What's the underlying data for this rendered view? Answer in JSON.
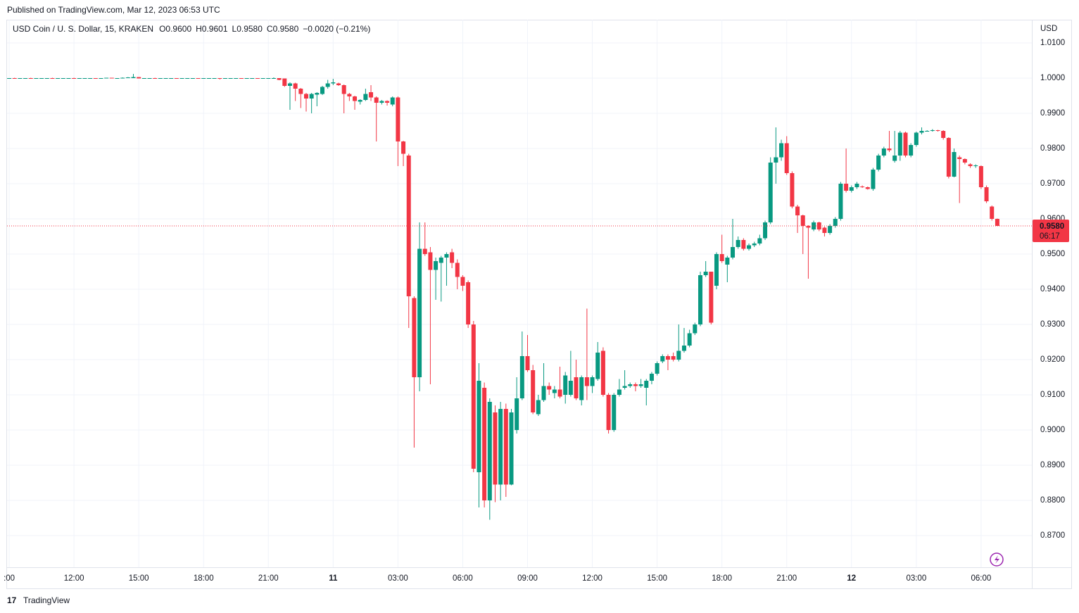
{
  "header": {
    "published": "Published on TradingView.com, Mar 12, 2023 06:53 UTC",
    "footer": "TradingView"
  },
  "chart_data": {
    "type": "candlestick",
    "title": "USD Coin / U. S. Dollar, 15, KRAKEN",
    "ohlc": [
      {
        "name": "O",
        "value": 0.96,
        "label": "0.9600"
      },
      {
        "name": "H",
        "value": 0.9601,
        "label": "0.9601"
      },
      {
        "name": "L",
        "value": 0.958,
        "label": "0.9580"
      },
      {
        "name": "C",
        "value": 0.958,
        "label": "0.9580"
      }
    ],
    "change": "−0.0020 (−0.21%)",
    "currency": "USD",
    "last_price": {
      "value": 0.958,
      "label": "0.9580"
    },
    "countdown": "06:17",
    "up_color": "#089981",
    "down_color": "#f23645",
    "grid": true,
    "ylim": [
      0.861,
      1.0166
    ],
    "yticks": [
      {
        "value": 1.01,
        "label": "1.0100"
      },
      {
        "value": 1.0,
        "label": "1.0000"
      },
      {
        "value": 0.99,
        "label": "0.9900"
      },
      {
        "value": 0.98,
        "label": "0.9800"
      },
      {
        "value": 0.97,
        "label": "0.9700"
      },
      {
        "value": 0.96,
        "label": "0.9600"
      },
      {
        "value": 0.95,
        "label": "0.9500"
      },
      {
        "value": 0.94,
        "label": "0.9400"
      },
      {
        "value": 0.93,
        "label": "0.9300"
      },
      {
        "value": 0.92,
        "label": "0.9200"
      },
      {
        "value": 0.91,
        "label": "0.9100"
      },
      {
        "value": 0.9,
        "label": "0.9000"
      },
      {
        "value": 0.89,
        "label": "0.8900"
      },
      {
        "value": 0.88,
        "label": "0.8800"
      },
      {
        "value": 0.87,
        "label": "0.8700"
      }
    ],
    "xlim": [
      -0.4,
      189.4
    ],
    "xticks": [
      {
        "value": 0,
        "label": ":00"
      },
      {
        "value": 12,
        "label": "12:00"
      },
      {
        "value": 24,
        "label": "15:00"
      },
      {
        "value": 36,
        "label": "18:00"
      },
      {
        "value": 48,
        "label": "21:00"
      },
      {
        "value": 60,
        "label": "11"
      },
      {
        "value": 72,
        "label": "03:00"
      },
      {
        "value": 84,
        "label": "06:00"
      },
      {
        "value": 96,
        "label": "09:00"
      },
      {
        "value": 108,
        "label": "12:00"
      },
      {
        "value": 120,
        "label": "15:00"
      },
      {
        "value": 132,
        "label": "18:00"
      },
      {
        "value": 144,
        "label": "21:00"
      },
      {
        "value": 156,
        "label": "12"
      },
      {
        "value": 168,
        "label": "03:00"
      },
      {
        "value": 180,
        "label": "06:00"
      }
    ],
    "candles": [
      [
        1,
        1,
        1,
        1
      ],
      [
        1,
        1.0001,
        0.9999,
        0.9999
      ],
      [
        0.9999,
        1,
        0.9999,
        1
      ],
      [
        1,
        1,
        1,
        1
      ],
      [
        1,
        1.0001,
        0.9999,
        0.9999
      ],
      [
        0.9999,
        1,
        0.9999,
        1
      ],
      [
        1,
        1,
        1,
        1
      ],
      [
        1,
        1,
        1,
        1
      ],
      [
        1,
        1.0001,
        0.9999,
        0.9999
      ],
      [
        0.9999,
        1,
        0.9999,
        1
      ],
      [
        1,
        1,
        1,
        1
      ],
      [
        1,
        1,
        1,
        1
      ],
      [
        1,
        1.0001,
        0.9999,
        0.9999
      ],
      [
        0.9999,
        1,
        0.9999,
        1
      ],
      [
        1,
        1,
        1,
        1
      ],
      [
        1,
        1,
        1,
        1
      ],
      [
        1,
        1,
        0.9999,
        0.9999
      ],
      [
        0.9999,
        1,
        0.9999,
        1
      ],
      [
        1,
        1.0001,
        1,
        1.0001
      ],
      [
        1.0001,
        1.0001,
        1,
        1
      ],
      [
        1,
        1,
        1,
        1
      ],
      [
        1,
        1.0002,
        1,
        1.0001
      ],
      [
        1.0001,
        1.0003,
        1,
        1.0002
      ],
      [
        1,
        1.0012,
        1,
        1.0003
      ],
      [
        1.0003,
        1.0003,
        0.9999,
        0.9999
      ],
      [
        0.9999,
        1,
        0.9999,
        1
      ],
      [
        1,
        1,
        1,
        1
      ],
      [
        1,
        1.0001,
        0.9999,
        0.9999
      ],
      [
        0.9999,
        1,
        0.9999,
        1
      ],
      [
        1,
        1,
        1,
        1
      ],
      [
        1,
        1,
        1,
        1
      ],
      [
        1,
        1,
        0.9999,
        0.9999
      ],
      [
        0.9999,
        1,
        0.9999,
        1
      ],
      [
        1,
        1,
        1,
        1
      ],
      [
        1,
        1,
        1,
        1
      ],
      [
        1,
        1,
        0.9999,
        0.9999
      ],
      [
        0.9999,
        1,
        0.9999,
        1
      ],
      [
        1,
        1,
        1,
        1
      ],
      [
        1,
        1,
        1,
        1
      ],
      [
        1,
        1,
        0.9996,
        0.9999
      ],
      [
        0.9999,
        1,
        0.9999,
        1
      ],
      [
        1,
        1,
        1,
        1
      ],
      [
        1,
        1,
        1,
        1
      ],
      [
        1,
        1,
        0.9999,
        0.9999
      ],
      [
        0.9999,
        1,
        0.9998,
        1
      ],
      [
        1,
        1,
        1,
        1
      ],
      [
        1,
        1,
        0.9999,
        0.9999
      ],
      [
        0.9999,
        1,
        0.9998,
        1
      ],
      [
        1,
        1,
        1,
        1
      ],
      [
        1,
        1.0002,
        0.9998,
        1
      ],
      [
        1,
        1,
        0.9994,
        0.9995
      ],
      [
        0.9999,
        0.9999,
        0.9975,
        0.9978
      ],
      [
        0.9978,
        0.9988,
        0.991,
        0.9985
      ],
      [
        0.9985,
        0.9987,
        0.9935,
        0.997
      ],
      [
        0.997,
        0.9972,
        0.9915,
        0.9955
      ],
      [
        0.9955,
        0.9958,
        0.9905,
        0.9942
      ],
      [
        0.9942,
        0.9958,
        0.99,
        0.9955
      ],
      [
        0.9953,
        0.996,
        0.992,
        0.9958
      ],
      [
        0.9955,
        0.9978,
        0.9952,
        0.9975
      ],
      [
        0.9975,
        0.9995,
        0.997,
        0.9985
      ],
      [
        0.9985,
        0.9998,
        0.998,
        0.9988
      ],
      [
        0.9985,
        0.9987,
        0.9978,
        0.998
      ],
      [
        0.998,
        0.9982,
        0.99,
        0.9955
      ],
      [
        0.9955,
        0.9958,
        0.9935,
        0.9948
      ],
      [
        0.9948,
        0.995,
        0.991,
        0.9935
      ],
      [
        0.9933,
        0.994,
        0.9925,
        0.9938
      ],
      [
        0.9938,
        0.997,
        0.9935,
        0.9955
      ],
      [
        0.996,
        0.998,
        0.9935,
        0.9945
      ],
      [
        0.9945,
        0.9948,
        0.982,
        0.993
      ],
      [
        0.993,
        0.9938,
        0.9925,
        0.9935
      ],
      [
        0.9935,
        0.9937,
        0.9922,
        0.993
      ],
      [
        0.9925,
        0.9948,
        0.992,
        0.9945
      ],
      [
        0.9945,
        0.9948,
        0.975,
        0.982
      ],
      [
        0.982,
        0.9822,
        0.975,
        0.9785
      ],
      [
        0.978,
        0.9785,
        0.929,
        0.938
      ],
      [
        0.9375,
        0.938,
        0.895,
        0.915
      ],
      [
        0.915,
        0.959,
        0.911,
        0.9515
      ],
      [
        0.9515,
        0.959,
        0.9495,
        0.95
      ],
      [
        0.9505,
        0.952,
        0.913,
        0.9455
      ],
      [
        0.9455,
        0.949,
        0.937,
        0.948
      ],
      [
        0.9475,
        0.9495,
        0.9365,
        0.949
      ],
      [
        0.949,
        0.9505,
        0.941,
        0.95
      ],
      [
        0.9505,
        0.9515,
        0.946,
        0.9475
      ],
      [
        0.9475,
        0.9485,
        0.94,
        0.9435
      ],
      [
        0.9435,
        0.944,
        0.9395,
        0.941
      ],
      [
        0.942,
        0.9425,
        0.929,
        0.93
      ],
      [
        0.93,
        0.931,
        0.888,
        0.889
      ],
      [
        0.888,
        0.919,
        0.878,
        0.914
      ],
      [
        0.912,
        0.9135,
        0.878,
        0.88
      ],
      [
        0.88,
        0.909,
        0.8745,
        0.908
      ],
      [
        0.905,
        0.907,
        0.8795,
        0.8845
      ],
      [
        0.8845,
        0.908,
        0.88,
        0.906
      ],
      [
        0.906,
        0.9075,
        0.881,
        0.8845
      ],
      [
        0.8845,
        0.906,
        0.8843,
        0.905
      ],
      [
        0.9,
        0.915,
        0.899,
        0.909
      ],
      [
        0.909,
        0.928,
        0.9085,
        0.921
      ],
      [
        0.921,
        0.927,
        0.9165,
        0.917
      ],
      [
        0.917,
        0.9185,
        0.9045,
        0.905
      ],
      [
        0.9045,
        0.91,
        0.904,
        0.9085
      ],
      [
        0.9085,
        0.919,
        0.908,
        0.9125
      ],
      [
        0.9125,
        0.9135,
        0.91,
        0.9115
      ],
      [
        0.9105,
        0.9125,
        0.909,
        0.9115
      ],
      [
        0.9115,
        0.918,
        0.909,
        0.9095
      ],
      [
        0.91,
        0.9165,
        0.9075,
        0.9155
      ],
      [
        0.91,
        0.9225,
        0.9095,
        0.914
      ],
      [
        0.915,
        0.92,
        0.9085,
        0.909
      ],
      [
        0.9085,
        0.9155,
        0.907,
        0.915
      ],
      [
        0.915,
        0.9345,
        0.9085,
        0.9125
      ],
      [
        0.9125,
        0.9155,
        0.9105,
        0.915
      ],
      [
        0.9145,
        0.925,
        0.914,
        0.922
      ],
      [
        0.9225,
        0.9235,
        0.9095,
        0.91
      ],
      [
        0.91,
        0.9105,
        0.899,
        0.9
      ],
      [
        0.9,
        0.9105,
        0.8995,
        0.91
      ],
      [
        0.91,
        0.9145,
        0.9095,
        0.9115
      ],
      [
        0.912,
        0.917,
        0.9115,
        0.9125
      ],
      [
        0.9125,
        0.9135,
        0.912,
        0.913
      ],
      [
        0.913,
        0.9135,
        0.911,
        0.9125
      ],
      [
        0.9125,
        0.9145,
        0.912,
        0.913
      ],
      [
        0.912,
        0.9145,
        0.907,
        0.914
      ],
      [
        0.914,
        0.9165,
        0.913,
        0.916
      ],
      [
        0.916,
        0.9195,
        0.9155,
        0.919
      ],
      [
        0.9195,
        0.9215,
        0.919,
        0.921
      ],
      [
        0.921,
        0.9215,
        0.917,
        0.92
      ],
      [
        0.921,
        0.922,
        0.9195,
        0.92
      ],
      [
        0.92,
        0.93,
        0.9195,
        0.9225
      ],
      [
        0.9225,
        0.929,
        0.922,
        0.924
      ],
      [
        0.924,
        0.9285,
        0.9235,
        0.9275
      ],
      [
        0.9275,
        0.9305,
        0.927,
        0.93
      ],
      [
        0.93,
        0.945,
        0.9295,
        0.944
      ],
      [
        0.944,
        0.948,
        0.9435,
        0.945
      ],
      [
        0.945,
        0.945,
        0.93,
        0.9305
      ],
      [
        0.941,
        0.9505,
        0.94,
        0.95
      ],
      [
        0.95,
        0.9555,
        0.9475,
        0.948
      ],
      [
        0.947,
        0.9495,
        0.942,
        0.949
      ],
      [
        0.949,
        0.96,
        0.9485,
        0.952
      ],
      [
        0.952,
        0.955,
        0.9515,
        0.954
      ],
      [
        0.954,
        0.9545,
        0.951,
        0.9515
      ],
      [
        0.9515,
        0.953,
        0.951,
        0.9525
      ],
      [
        0.9525,
        0.9535,
        0.952,
        0.953
      ],
      [
        0.953,
        0.9555,
        0.9525,
        0.9545
      ],
      [
        0.9545,
        0.9595,
        0.954,
        0.959
      ],
      [
        0.959,
        0.9775,
        0.9585,
        0.976
      ],
      [
        0.976,
        0.986,
        0.97,
        0.9775
      ],
      [
        0.9775,
        0.9825,
        0.9765,
        0.9815
      ],
      [
        0.9815,
        0.9835,
        0.9725,
        0.973
      ],
      [
        0.973,
        0.9735,
        0.963,
        0.9635
      ],
      [
        0.9635,
        0.964,
        0.956,
        0.961
      ],
      [
        0.961,
        0.9612,
        0.95,
        0.958
      ],
      [
        0.958,
        0.9582,
        0.943,
        0.9575
      ],
      [
        0.957,
        0.9595,
        0.9565,
        0.959
      ],
      [
        0.959,
        0.9592,
        0.9565,
        0.957
      ],
      [
        0.9575,
        0.9578,
        0.955,
        0.956
      ],
      [
        0.956,
        0.9585,
        0.9555,
        0.958
      ],
      [
        0.958,
        0.9605,
        0.9575,
        0.96
      ],
      [
        0.96,
        0.9705,
        0.9595,
        0.97
      ],
      [
        0.97,
        0.98,
        0.9675,
        0.968
      ],
      [
        0.968,
        0.9695,
        0.9675,
        0.969
      ],
      [
        0.969,
        0.9705,
        0.9685,
        0.97
      ],
      [
        0.9692,
        0.9695,
        0.9688,
        0.969
      ],
      [
        0.969,
        0.9692,
        0.9683,
        0.9685
      ],
      [
        0.9685,
        0.9745,
        0.968,
        0.974
      ],
      [
        0.974,
        0.9785,
        0.9735,
        0.978
      ],
      [
        0.978,
        0.9805,
        0.9775,
        0.98
      ],
      [
        0.98,
        0.985,
        0.979,
        0.9795
      ],
      [
        0.9765,
        0.985,
        0.976,
        0.978
      ],
      [
        0.978,
        0.985,
        0.9765,
        0.9845
      ],
      [
        0.9845,
        0.9848,
        0.9775,
        0.978
      ],
      [
        0.978,
        0.9815,
        0.9775,
        0.981
      ],
      [
        0.981,
        0.9848,
        0.9805,
        0.9845
      ],
      [
        0.9845,
        0.986,
        0.984,
        0.985
      ],
      [
        0.985,
        0.9852,
        0.9848,
        0.985
      ],
      [
        0.985,
        0.9855,
        0.9848,
        0.9852
      ],
      [
        0.9852,
        0.9853,
        0.9848,
        0.985
      ],
      [
        0.985,
        0.9852,
        0.9825,
        0.983
      ],
      [
        0.983,
        0.9832,
        0.9715,
        0.972
      ],
      [
        0.972,
        0.98,
        0.9718,
        0.979
      ],
      [
        0.9775,
        0.978,
        0.9645,
        0.977
      ],
      [
        0.977,
        0.9772,
        0.9755,
        0.976
      ],
      [
        0.9755,
        0.9758,
        0.9745,
        0.975
      ],
      [
        0.975,
        0.9755,
        0.9745,
        0.9752
      ],
      [
        0.975,
        0.9752,
        0.9685,
        0.969
      ],
      [
        0.969,
        0.9695,
        0.9645,
        0.965
      ],
      [
        0.9635,
        0.9638,
        0.9595,
        0.96
      ],
      [
        0.96,
        0.9601,
        0.958,
        0.958
      ]
    ]
  }
}
